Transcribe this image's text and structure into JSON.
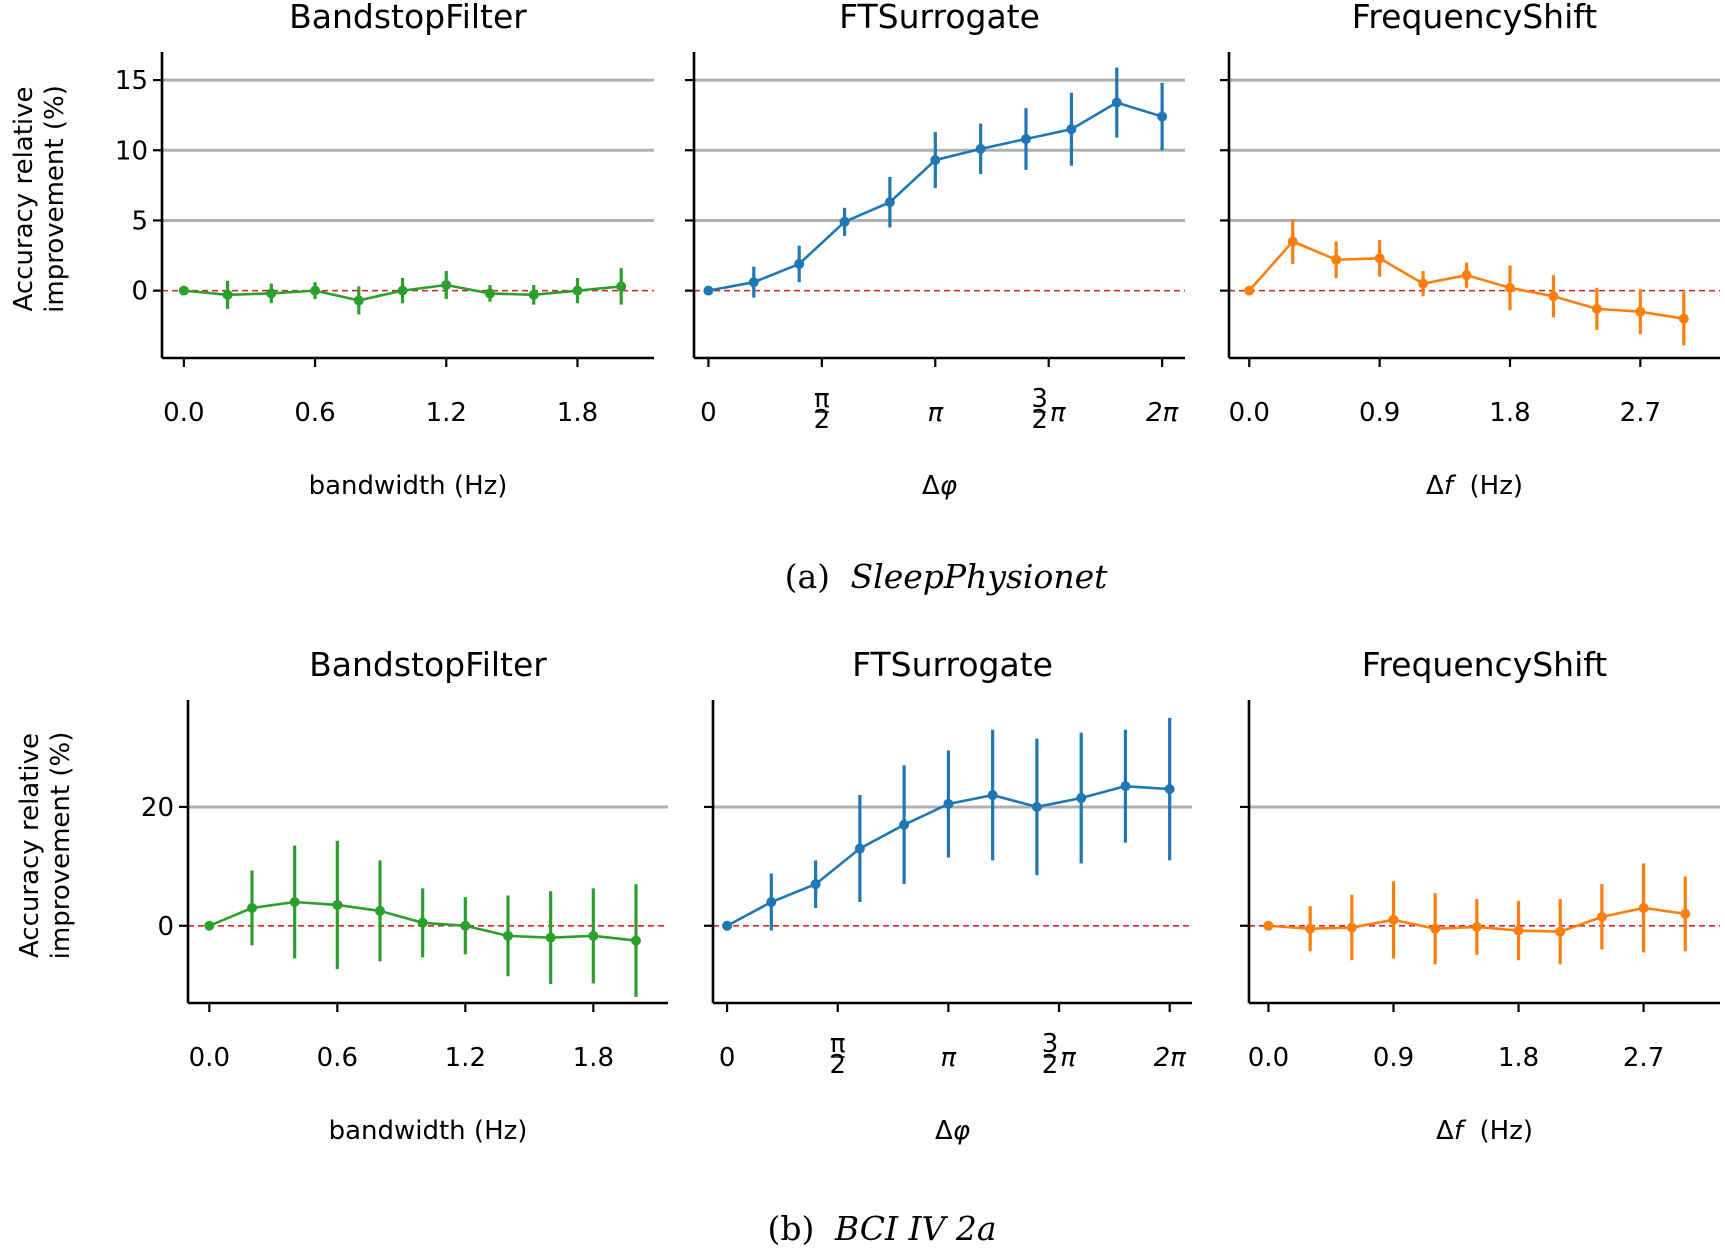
{
  "chart_data": [
    {
      "type": "line",
      "panel": "a",
      "title": "BandstopFilter",
      "xlabel": "bandwidth (Hz)",
      "ylabel": "Accuracy relative\nimprovement (%)",
      "xlim": [
        -0.1,
        2.15
      ],
      "ylim": [
        -4.8,
        17
      ],
      "xticks": [
        0.0,
        0.6,
        1.2,
        1.8
      ],
      "xtick_labels": [
        "0.0",
        "0.6",
        "1.2",
        "1.8"
      ],
      "yticks": [
        0,
        5,
        10,
        15
      ],
      "ytick_labels": [
        "0",
        "5",
        "10",
        "15"
      ],
      "show_ytick_labels": true,
      "grid_y": true,
      "reference_line": 0,
      "color": "#2ca02c",
      "x": [
        0.0,
        0.2,
        0.4,
        0.6,
        0.8,
        1.0,
        1.2,
        1.4,
        1.6,
        1.8,
        2.0
      ],
      "values": [
        0.0,
        -0.3,
        -0.2,
        0.0,
        -0.7,
        0.0,
        0.4,
        -0.2,
        -0.3,
        0.0,
        0.3
      ],
      "err": [
        0.1,
        1.0,
        0.7,
        0.6,
        1.0,
        0.9,
        1.0,
        0.6,
        0.7,
        0.9,
        1.3
      ]
    },
    {
      "type": "line",
      "panel": "a",
      "title": "FTSurrogate",
      "xlabel": "Δφ",
      "xlim": [
        -0.2,
        6.6
      ],
      "ylim": [
        -4.8,
        17
      ],
      "xticks": [
        0,
        1.5708,
        3.1416,
        4.7124,
        6.2832
      ],
      "xtick_labels": [
        "0",
        "π/2",
        "π",
        "3/2π",
        "2π"
      ],
      "yticks": [
        0,
        5,
        10,
        15
      ],
      "show_ytick_labels": false,
      "grid_y": true,
      "reference_line": 0,
      "color": "#1f77b4",
      "x": [
        0.0,
        0.628,
        1.257,
        1.885,
        2.513,
        3.142,
        3.77,
        4.398,
        5.027,
        5.655,
        6.283
      ],
      "values": [
        0.0,
        0.6,
        1.9,
        4.9,
        6.3,
        9.3,
        10.1,
        10.8,
        11.5,
        13.4,
        12.4
      ],
      "err": [
        0.1,
        1.1,
        1.3,
        1.0,
        1.8,
        2.0,
        1.8,
        2.2,
        2.6,
        2.5,
        2.4
      ]
    },
    {
      "type": "line",
      "panel": "a",
      "title": "FrequencyShift",
      "xlabel": "Δf (Hz)",
      "xlim": [
        -0.14,
        3.25
      ],
      "ylim": [
        -4.8,
        17
      ],
      "xticks": [
        0.0,
        0.9,
        1.8,
        2.7
      ],
      "xtick_labels": [
        "0.0",
        "0.9",
        "1.8",
        "2.7"
      ],
      "yticks": [
        0,
        5,
        10,
        15
      ],
      "show_ytick_labels": false,
      "grid_y": true,
      "reference_line": 0,
      "color": "#ff7f0e",
      "x": [
        0.0,
        0.3,
        0.6,
        0.9,
        1.2,
        1.5,
        1.8,
        2.1,
        2.4,
        2.7,
        3.0
      ],
      "values": [
        0.0,
        3.5,
        2.2,
        2.3,
        0.5,
        1.1,
        0.2,
        -0.4,
        -1.3,
        -1.5,
        -2.0
      ],
      "err": [
        0.1,
        1.6,
        1.3,
        1.3,
        0.9,
        0.9,
        1.6,
        1.5,
        1.5,
        1.6,
        1.9
      ]
    },
    {
      "type": "line",
      "panel": "b",
      "title": "BandstopFilter",
      "xlabel": "bandwidth (Hz)",
      "ylabel": "Accuracy relative\nimprovement (%)",
      "xlim": [
        -0.1,
        2.15
      ],
      "ylim": [
        -13,
        38
      ],
      "xticks": [
        0.0,
        0.6,
        1.2,
        1.8
      ],
      "xtick_labels": [
        "0.0",
        "0.6",
        "1.2",
        "1.8"
      ],
      "yticks": [
        0,
        20
      ],
      "ytick_labels": [
        "0",
        "20"
      ],
      "show_ytick_labels": true,
      "grid_y": true,
      "reference_line": 0,
      "color": "#2ca02c",
      "x": [
        0.0,
        0.2,
        0.4,
        0.6,
        0.8,
        1.0,
        1.2,
        1.4,
        1.6,
        1.8,
        2.0
      ],
      "values": [
        0.0,
        3.0,
        4.0,
        3.5,
        2.5,
        0.5,
        0.0,
        -1.7,
        -2.0,
        -1.7,
        -2.5
      ],
      "err": [
        0.2,
        6.3,
        9.5,
        10.8,
        8.5,
        5.8,
        4.8,
        6.8,
        7.8,
        8.0,
        9.5
      ]
    },
    {
      "type": "line",
      "panel": "b",
      "title": "FTSurrogate",
      "xlabel": "Δφ",
      "xlim": [
        -0.2,
        6.6
      ],
      "ylim": [
        -13,
        38
      ],
      "xticks": [
        0,
        1.5708,
        3.1416,
        4.7124,
        6.2832
      ],
      "xtick_labels": [
        "0",
        "π/2",
        "π",
        "3/2π",
        "2π"
      ],
      "yticks": [
        0,
        20
      ],
      "show_ytick_labels": false,
      "grid_y": true,
      "reference_line": 0,
      "color": "#1f77b4",
      "x": [
        0.0,
        0.628,
        1.257,
        1.885,
        2.513,
        3.142,
        3.77,
        4.398,
        5.027,
        5.655,
        6.283
      ],
      "values": [
        0.0,
        4.0,
        7.0,
        13.0,
        17.0,
        20.5,
        22.0,
        20.0,
        21.5,
        23.5,
        23.0
      ],
      "err": [
        0.2,
        4.8,
        4.0,
        9.0,
        10.0,
        9.0,
        11.0,
        11.5,
        11.0,
        9.5,
        12.0
      ]
    },
    {
      "type": "line",
      "panel": "b",
      "title": "FrequencyShift",
      "xlabel": "Δf (Hz)",
      "xlim": [
        -0.14,
        3.25
      ],
      "ylim": [
        -13,
        38
      ],
      "xticks": [
        0.0,
        0.9,
        1.8,
        2.7
      ],
      "xtick_labels": [
        "0.0",
        "0.9",
        "1.8",
        "2.7"
      ],
      "yticks": [
        0,
        20
      ],
      "show_ytick_labels": false,
      "grid_y": true,
      "reference_line": 0,
      "color": "#ff7f0e",
      "x": [
        0.0,
        0.3,
        0.6,
        0.9,
        1.2,
        1.5,
        1.8,
        2.1,
        2.4,
        2.7,
        3.0
      ],
      "values": [
        0.0,
        -0.5,
        -0.3,
        1.0,
        -0.5,
        -0.2,
        -0.8,
        -1.0,
        1.5,
        3.0,
        2.0
      ],
      "err": [
        0.2,
        3.8,
        5.5,
        6.5,
        6.0,
        4.7,
        5.0,
        5.5,
        5.5,
        7.5,
        6.3
      ]
    }
  ],
  "captions": {
    "a_prefix": "(a)",
    "a_name": "SleepPhysionet",
    "b_prefix": "(b)",
    "b_name": "BCI IV 2a"
  }
}
